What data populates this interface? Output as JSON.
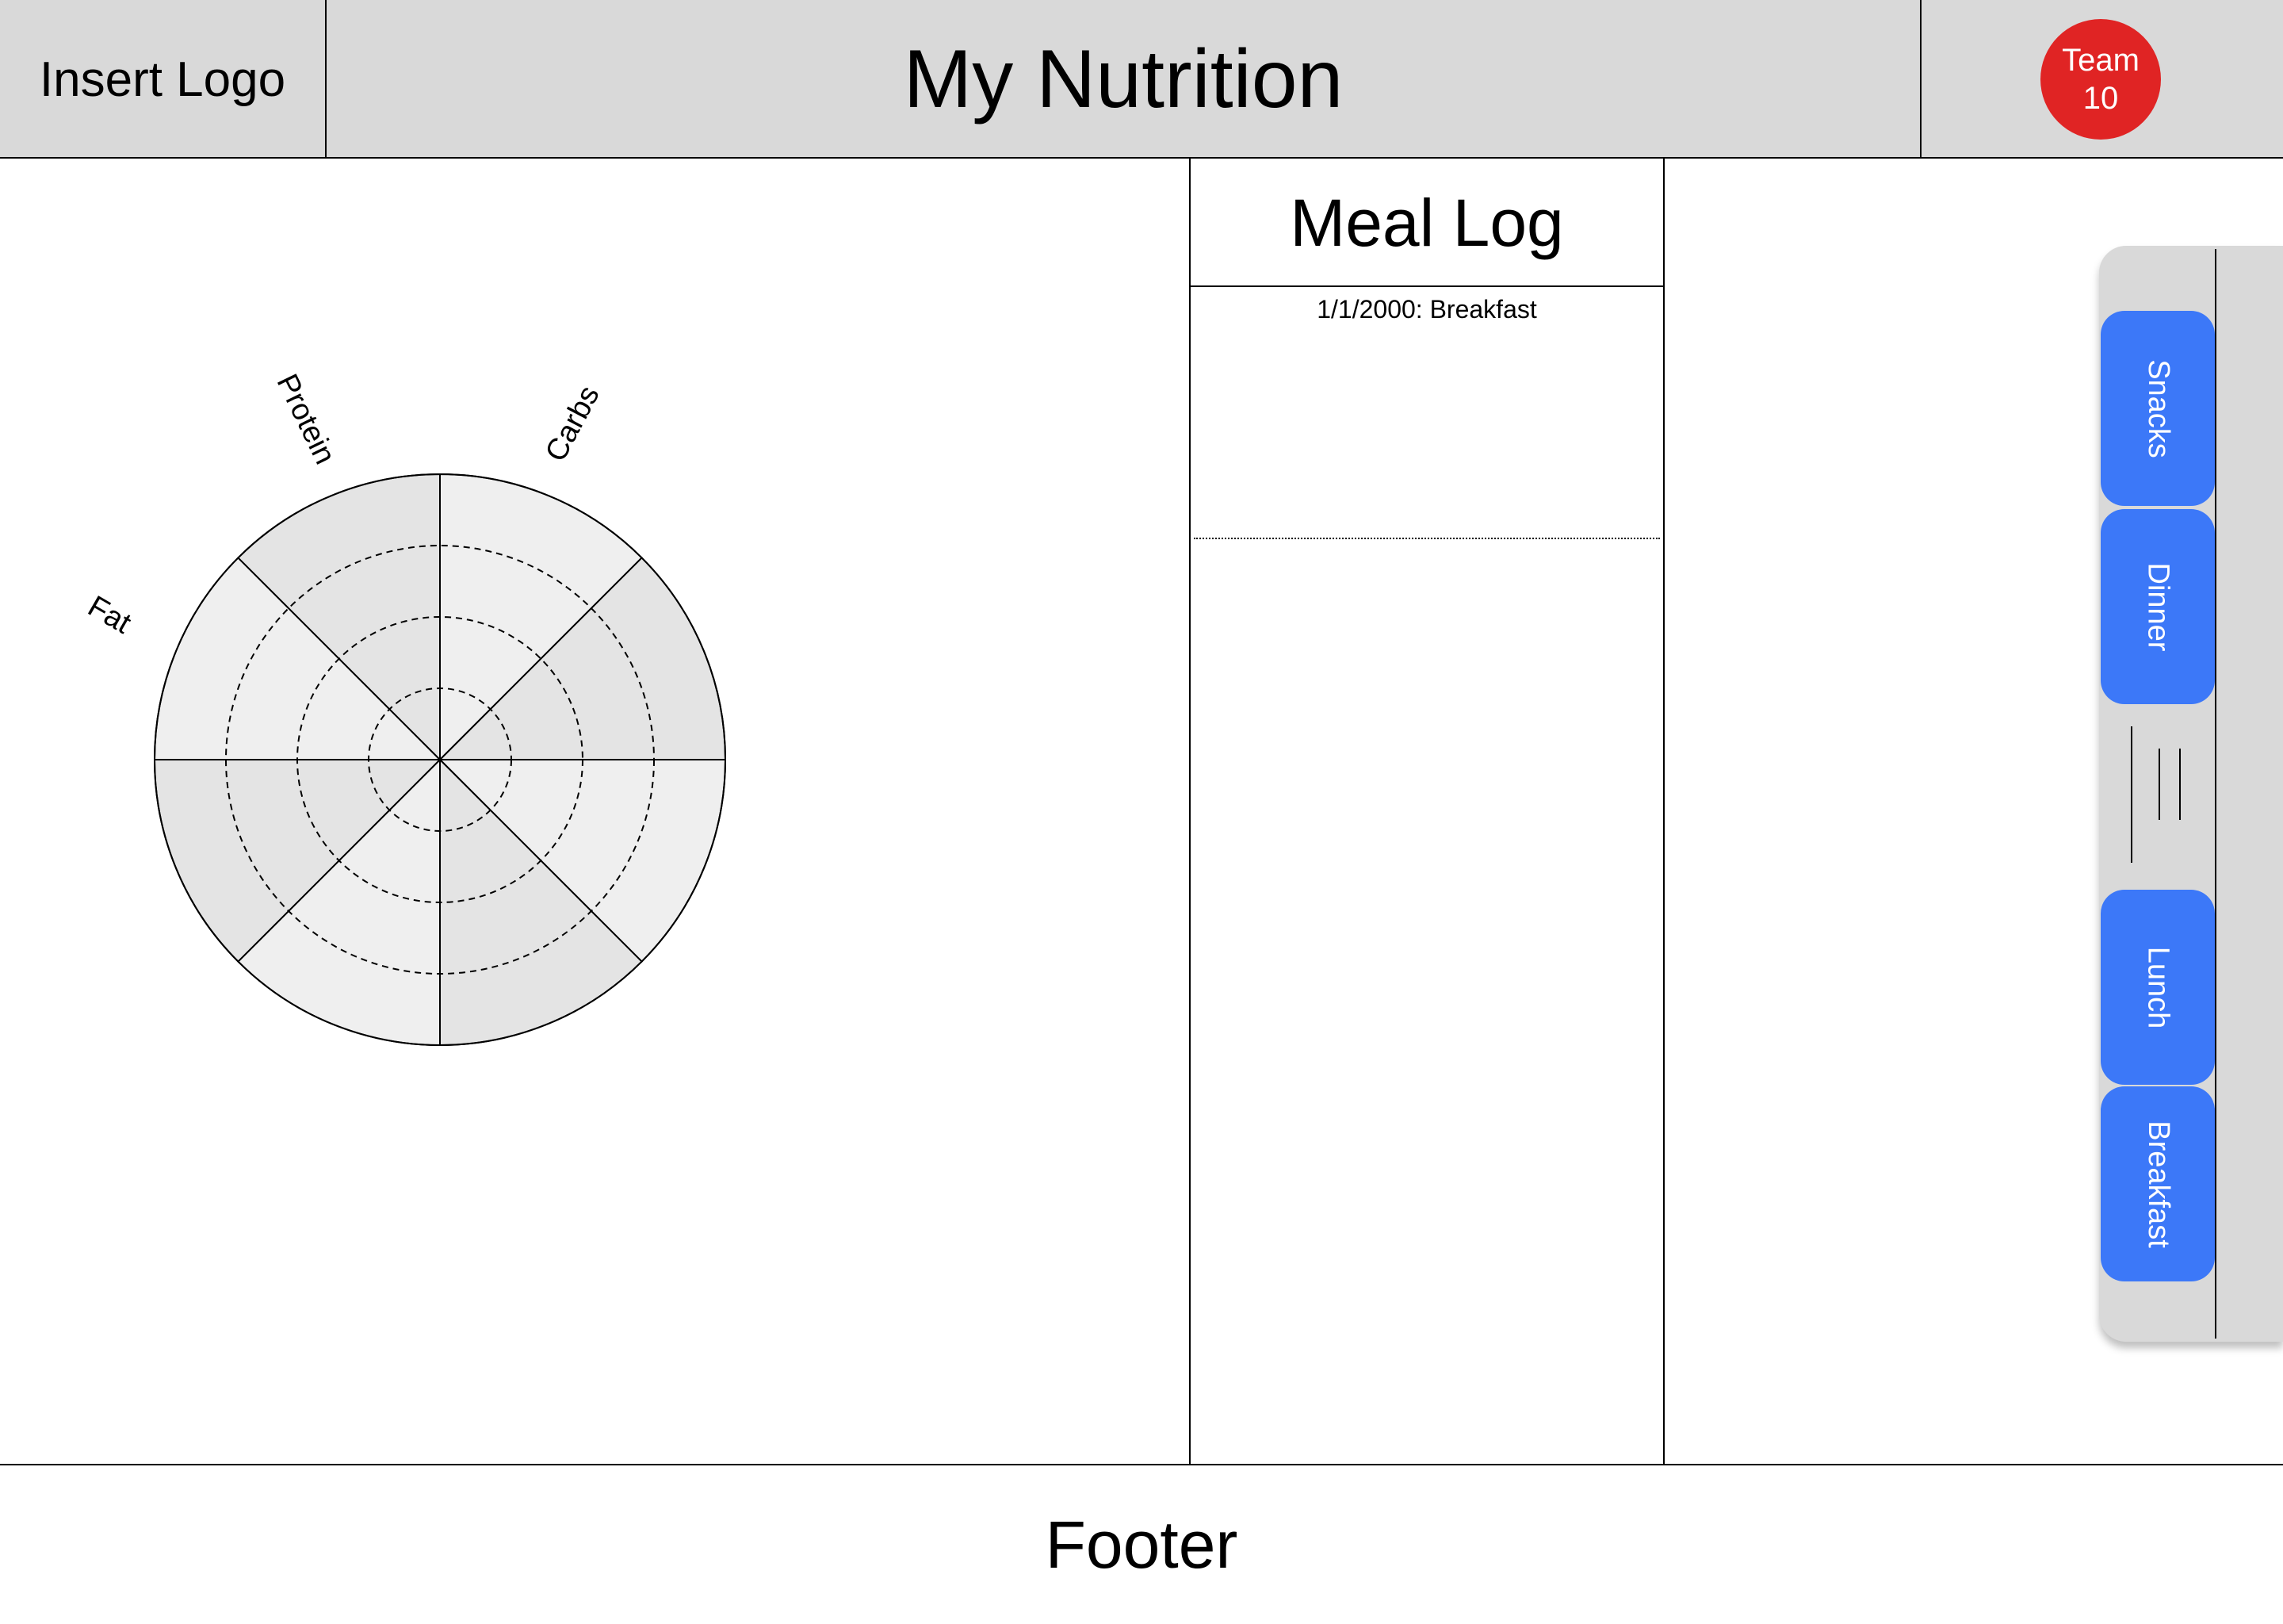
{
  "header": {
    "logo": "Insert Logo",
    "title": "My Nutrition",
    "team_badge": {
      "line1": "Team",
      "line2": "10",
      "color": "#e02424"
    }
  },
  "chart_data": {
    "type": "radar",
    "axis_labels": [
      "Carbs",
      "Protein",
      "Fat"
    ],
    "rings": 4,
    "series": []
  },
  "meal_log": {
    "title": "Meal Log",
    "entries": [
      "1/1/2000: Breakfast"
    ]
  },
  "meal_tabs": {
    "accent_color": "#3c78f8",
    "items": [
      "Snacks",
      "Dinner",
      "Lunch",
      "Breakfast"
    ]
  },
  "footer": {
    "label": "Footer"
  }
}
